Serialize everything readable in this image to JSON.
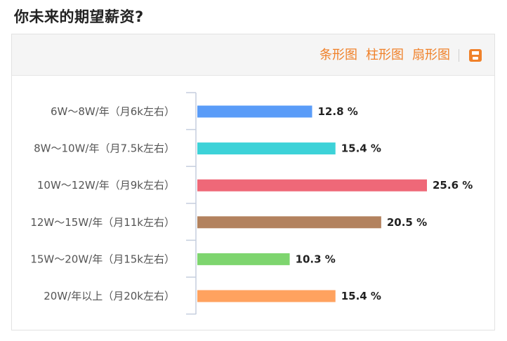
{
  "title": "你未来的期望薪资?",
  "toolbar": {
    "tabs": [
      "条形图",
      "柱形图",
      "扇形图"
    ],
    "save_icon": "save-icon",
    "accent_color": "#f0812a"
  },
  "chart_data": {
    "type": "bar",
    "orientation": "horizontal",
    "categories": [
      "6W～8W/年（月6k左右）",
      "8W～10W/年（月7.5k左右）",
      "10W～12W/年（月9k左右）",
      "12W～15W/年（月11k左右）",
      "15W～20W/年（月15k左右）",
      "20W/年以上（月20k左右）"
    ],
    "values": [
      12.8,
      15.4,
      25.6,
      20.5,
      10.3,
      15.4
    ],
    "value_labels": [
      "12.8 %",
      "15.4 %",
      "25.6 %",
      "20.5 %",
      "10.3 %",
      "15.4 %"
    ],
    "colors": [
      "#5a9cf8",
      "#3dd2d8",
      "#ef6878",
      "#b3825e",
      "#7ed56f",
      "#ffa25f"
    ],
    "xlim": [
      0,
      25.6
    ],
    "grid": false
  }
}
